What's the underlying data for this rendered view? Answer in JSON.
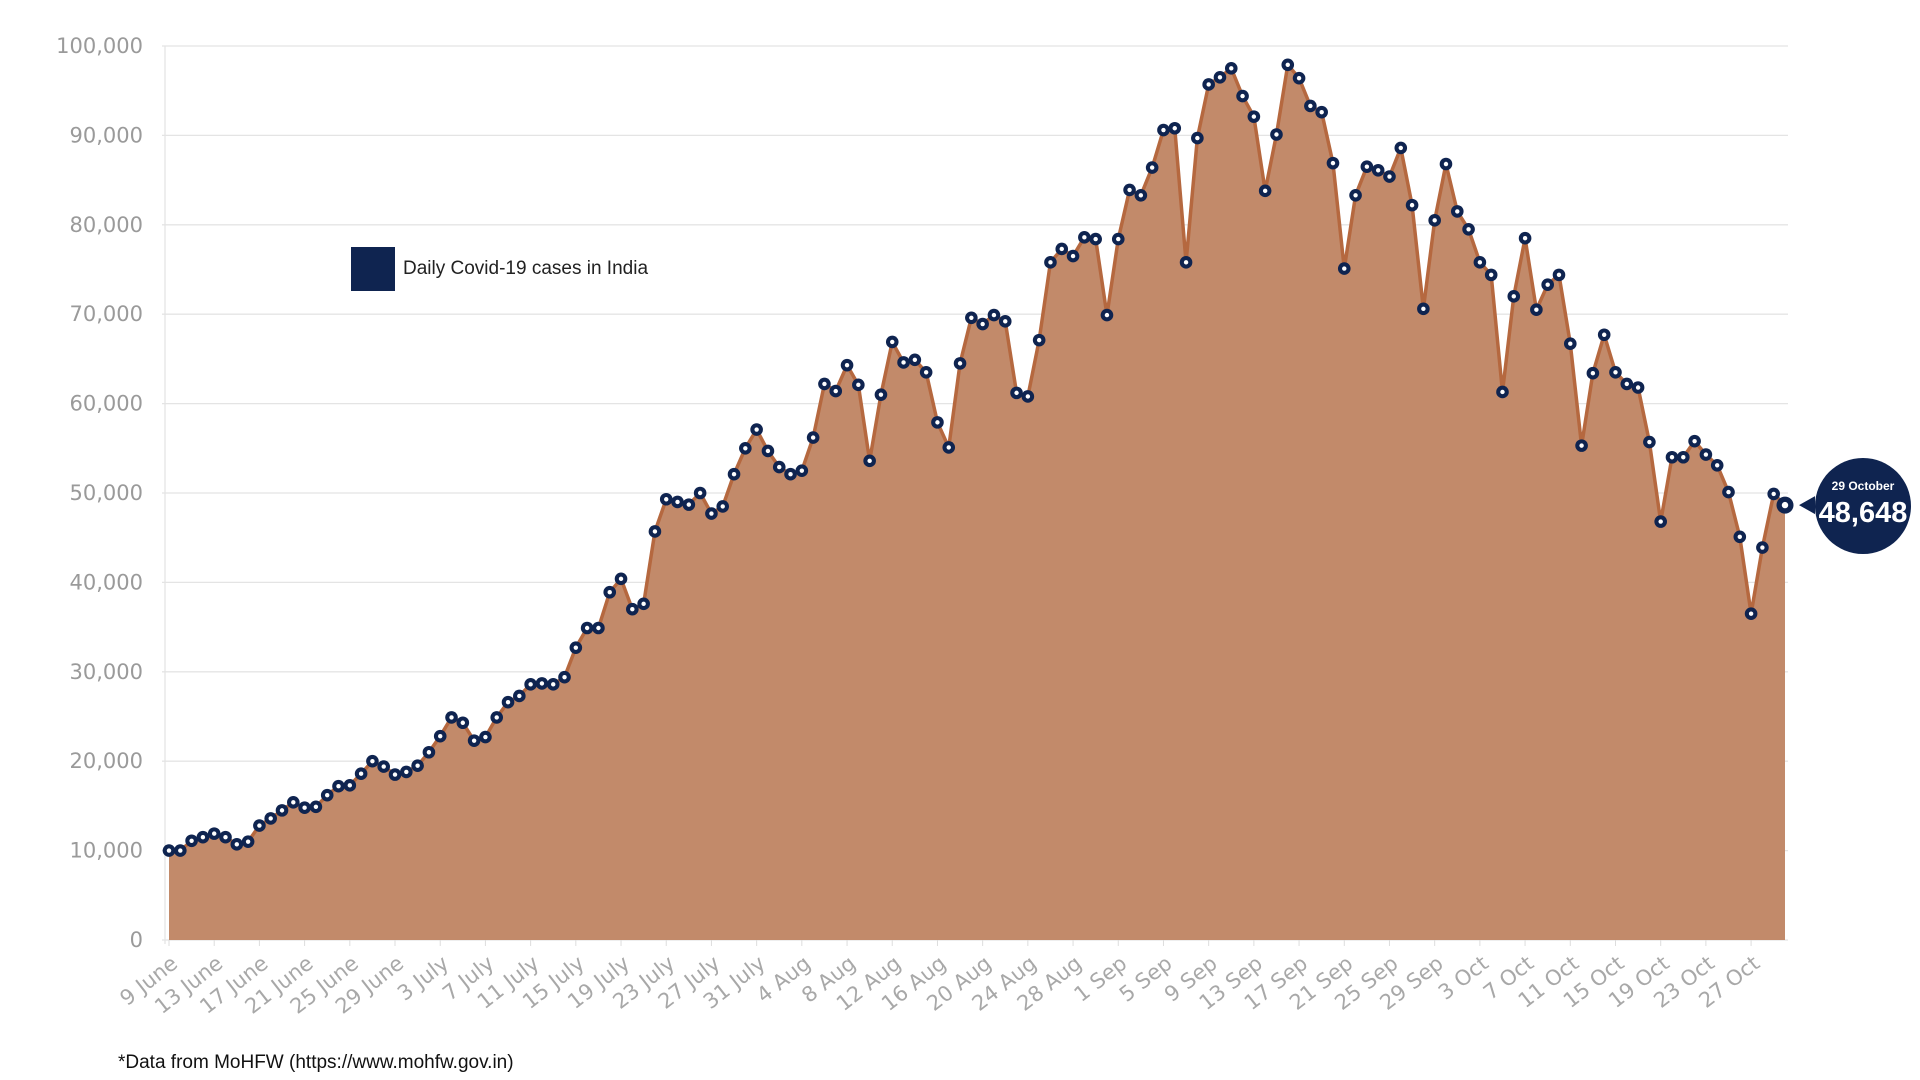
{
  "chart_data": {
    "type": "area",
    "legend": {
      "label": "Daily Covid-19 cases in India",
      "placement": "upper-left"
    },
    "source_note": "*Data from MoHFW (https://www.mohfw.gov.in)",
    "ylim": [
      0,
      100000
    ],
    "y_ticks": [
      "0",
      "10,000",
      "20,000",
      "30,000",
      "40,000",
      "50,000",
      "60,000",
      "70,000",
      "80,000",
      "90,000",
      "100,000"
    ],
    "x_tick_labels": [
      "9 June",
      "13 June",
      "17 June",
      "21 June",
      "25 June",
      "29 June",
      "3 July",
      "7 July",
      "11 July",
      "15 July",
      "19 July",
      "23 July",
      "27 July",
      "31 July",
      "4 Aug",
      "8 Aug",
      "12 Aug",
      "16 Aug",
      "20 Aug",
      "24 Aug",
      "28 Aug",
      "1 Sep",
      "5 Sep",
      "9 Sep",
      "13 Sep",
      "17 Sep",
      "21 Sep",
      "25 Sep",
      "29 Sep",
      "3 Oct",
      "7 Oct",
      "11 Oct",
      "15 Oct",
      "19 Oct",
      "23 Oct",
      "27 Oct"
    ],
    "x_start_date": "2020-06-09",
    "x_end_date": "2020-10-29",
    "grid": true,
    "series": [
      {
        "name": "Daily Covid-19 cases in India",
        "fill_color": "#c28a6a",
        "line_color": "#b5683f",
        "marker_color": "#0f2450",
        "values": [
          10000,
          10000,
          11100,
          11500,
          11900,
          11500,
          10700,
          11000,
          12800,
          13600,
          14500,
          15400,
          14800,
          14900,
          16200,
          17200,
          17300,
          18600,
          20000,
          19400,
          18500,
          18800,
          19500,
          21000,
          22800,
          24900,
          24300,
          22300,
          22700,
          24900,
          26600,
          27300,
          28600,
          28700,
          28600,
          29400,
          32700,
          34900,
          34900,
          38900,
          40400,
          37000,
          37600,
          45700,
          49300,
          49000,
          48700,
          50000,
          47700,
          48500,
          52100,
          55000,
          57100,
          54700,
          52900,
          52100,
          52500,
          56200,
          62200,
          61400,
          64300,
          62100,
          53600,
          61000,
          66900,
          64600,
          64900,
          63500,
          57900,
          55100,
          64500,
          69600,
          68900,
          69900,
          69200,
          61200,
          60800,
          67100,
          75800,
          77300,
          76500,
          78600,
          78400,
          69900,
          78400,
          83900,
          83300,
          86400,
          90600,
          90800,
          75800,
          89700,
          95700,
          96500,
          97500,
          94400,
          92100,
          83800,
          90100,
          97900,
          96400,
          93300,
          92600,
          86900,
          75100,
          83300,
          86500,
          86100,
          85400,
          88600,
          82200,
          70600,
          80500,
          86800,
          81500,
          79500,
          75800,
          74400,
          61300,
          72000,
          78500,
          70500,
          73300,
          74400,
          66700,
          55300,
          63400,
          67700,
          63500,
          62200,
          61800,
          55700,
          46800,
          54000,
          54000,
          55800,
          54300,
          53100,
          50100,
          45100,
          36500,
          43900,
          49900,
          48648
        ]
      }
    ],
    "callout": {
      "date_label": "29 October",
      "value_label": "48,648",
      "value": 48648
    }
  }
}
